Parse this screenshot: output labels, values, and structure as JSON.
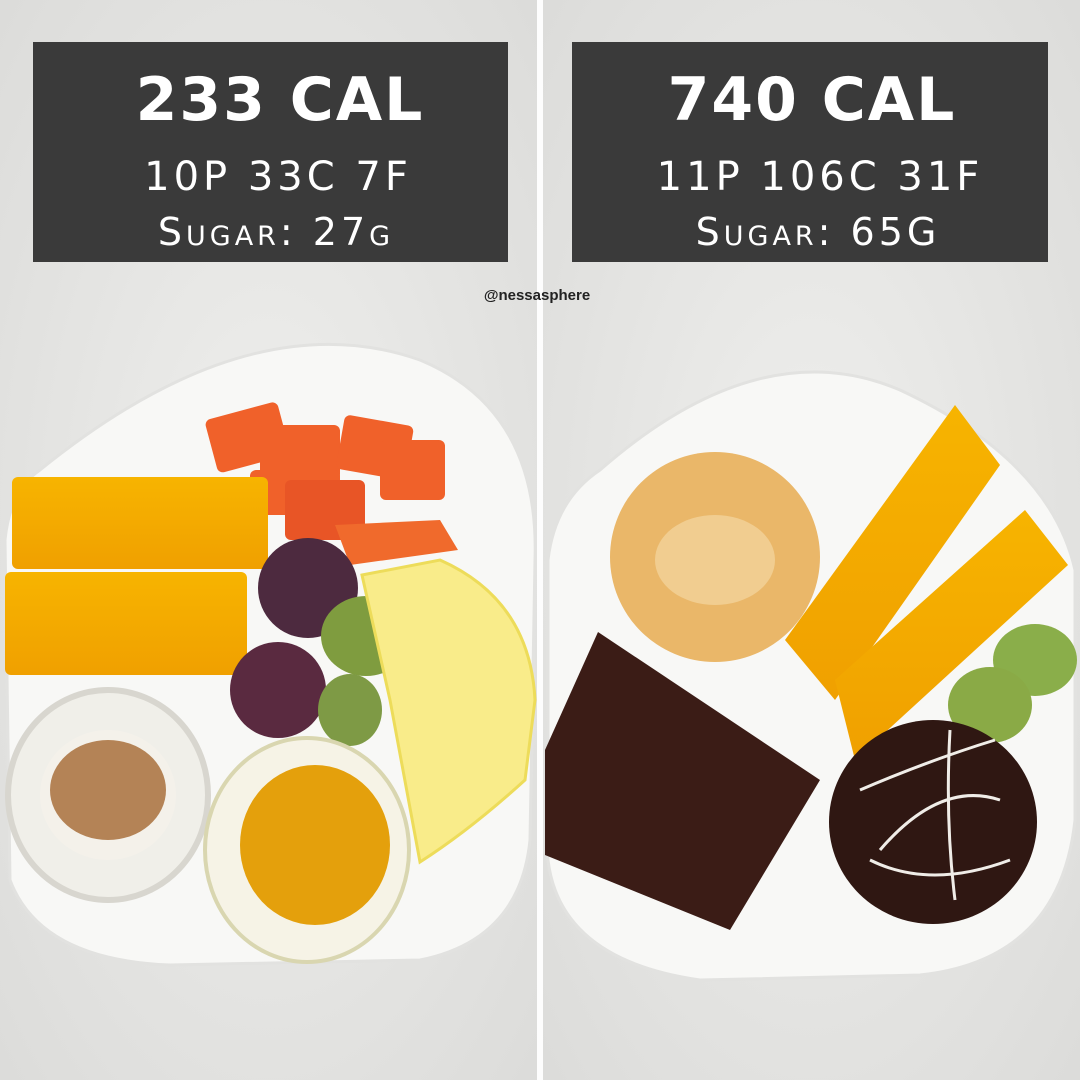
{
  "left": {
    "calories": "233 CAL",
    "macros": "10P 33C 7F",
    "sugar": "Sugar: 27g"
  },
  "right": {
    "calories": "740 CAL",
    "macros": "11P 106C 31F",
    "sugar": "Sugar: 65G"
  },
  "watermark": "@nessasphere"
}
